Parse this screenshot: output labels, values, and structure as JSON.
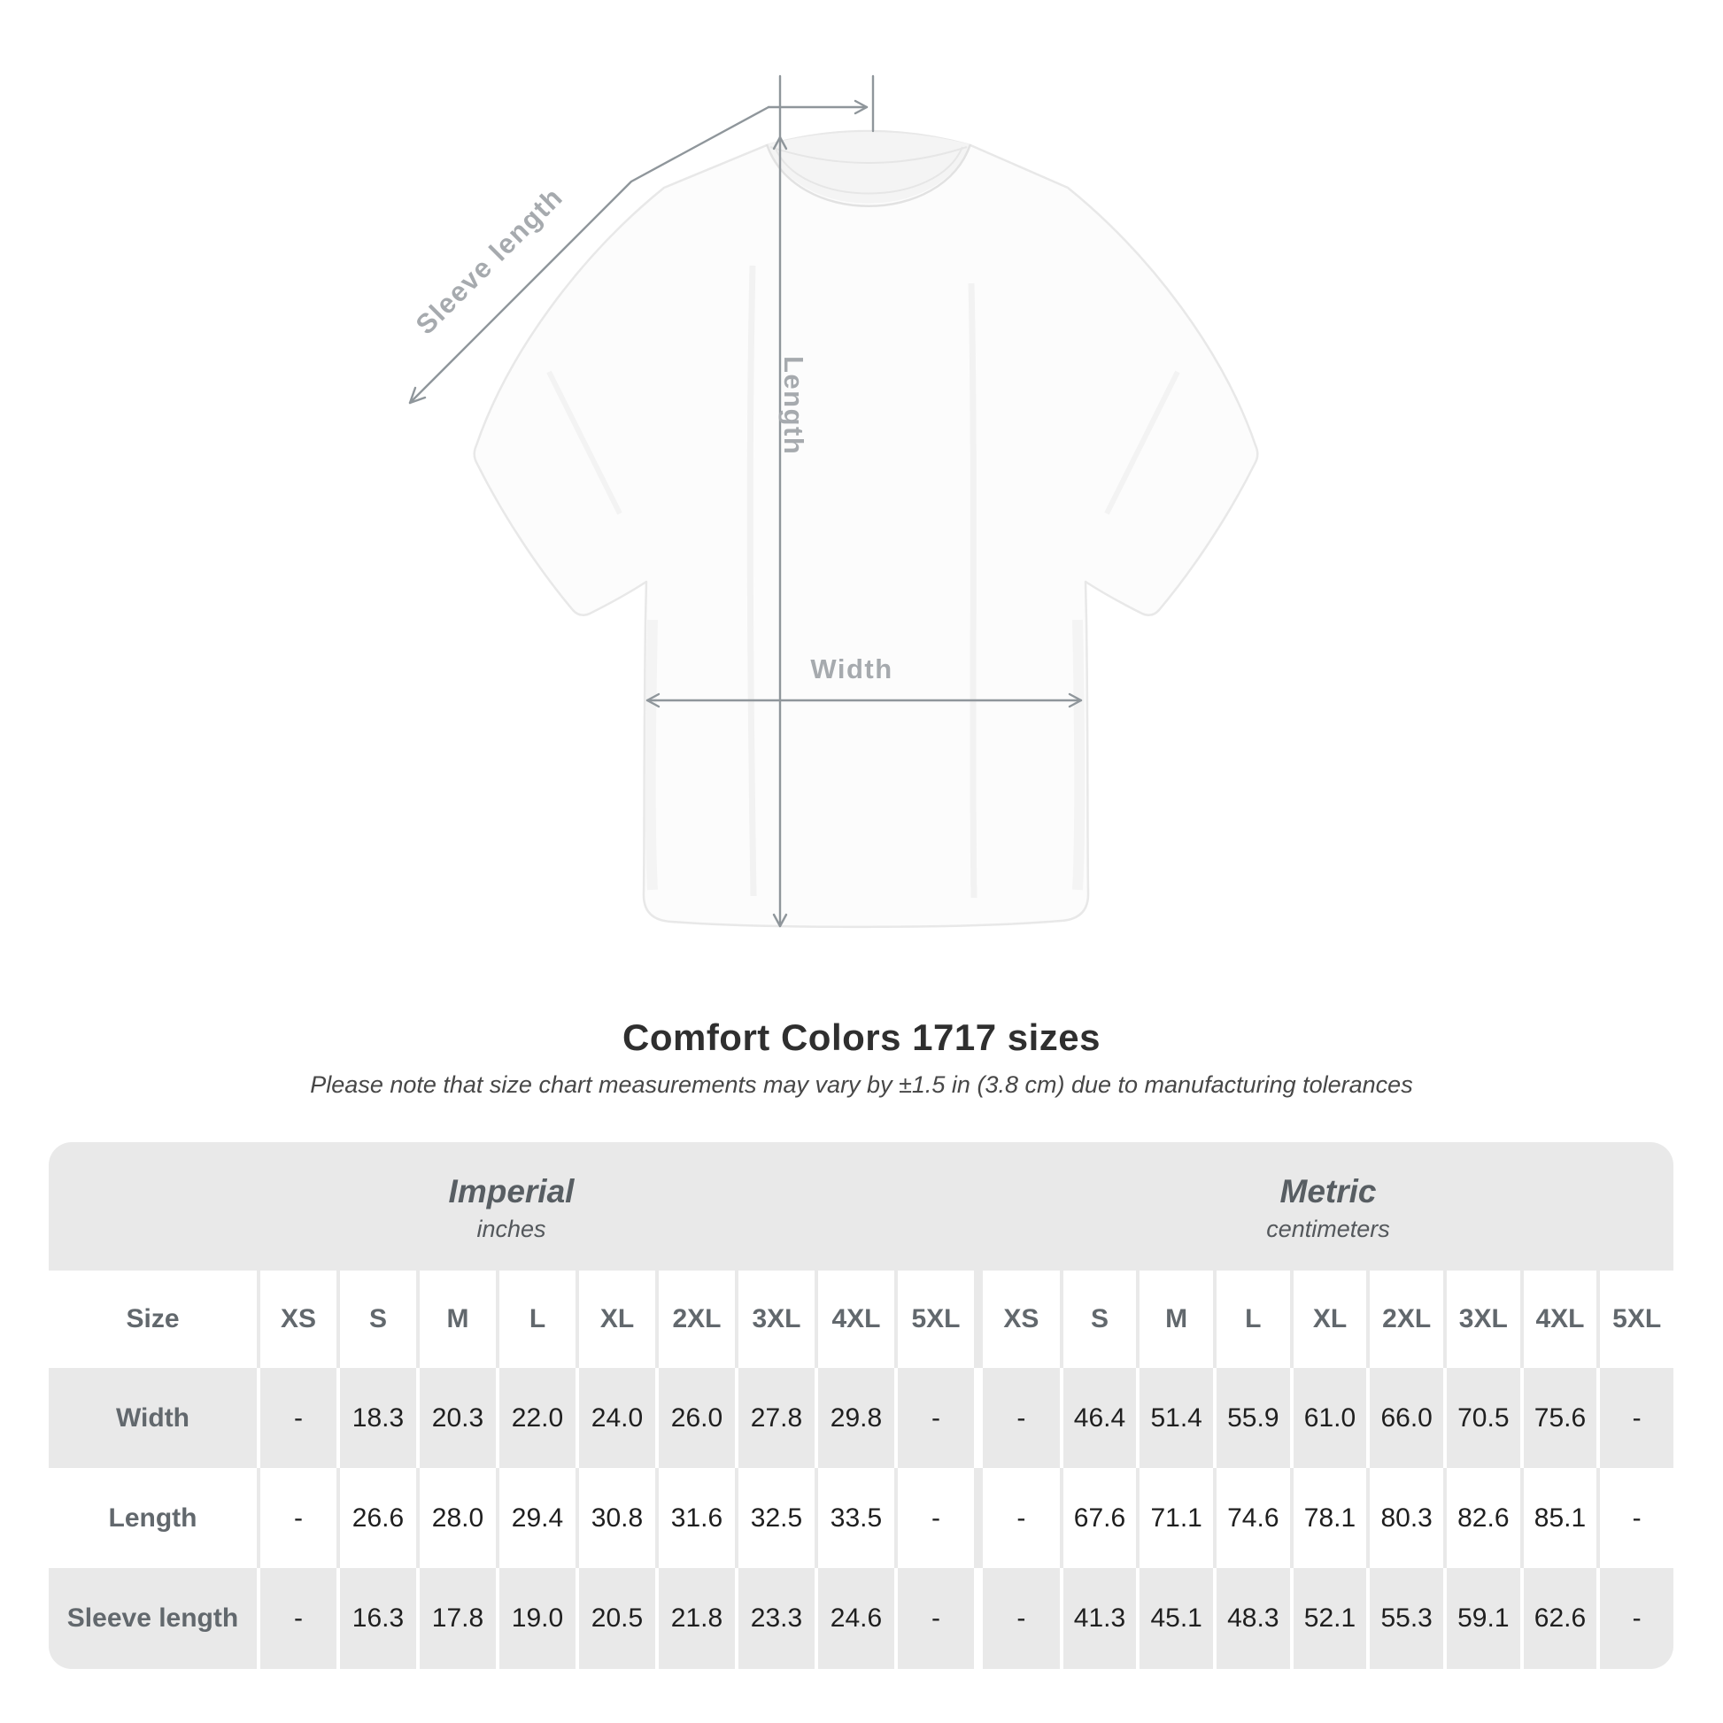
{
  "page": {
    "title": "Comfort Colors 1717 sizes",
    "subtitle": "Please note that size chart measurements may vary by ±1.5 in (3.8 cm) due to manufacturing tolerances"
  },
  "diagram": {
    "sleeve_label": "Sleeve length",
    "length_label": "Length",
    "width_label": "Width"
  },
  "size_table": {
    "units": [
      {
        "name": "Imperial",
        "unit": "inches"
      },
      {
        "name": "Metric",
        "unit": "centimeters"
      }
    ],
    "corner_label": "Size",
    "sizes": [
      "XS",
      "S",
      "M",
      "L",
      "XL",
      "2XL",
      "3XL",
      "4XL",
      "5XL"
    ],
    "rows": [
      {
        "label": "Width",
        "imperial": [
          "-",
          "18.3",
          "20.3",
          "22.0",
          "24.0",
          "26.0",
          "27.8",
          "29.8",
          "-"
        ],
        "metric": [
          "-",
          "46.4",
          "51.4",
          "55.9",
          "61.0",
          "66.0",
          "70.5",
          "75.6",
          "-"
        ]
      },
      {
        "label": "Length",
        "imperial": [
          "-",
          "26.6",
          "28.0",
          "29.4",
          "30.8",
          "31.6",
          "32.5",
          "33.5",
          "-"
        ],
        "metric": [
          "-",
          "67.6",
          "71.1",
          "74.6",
          "78.1",
          "80.3",
          "82.6",
          "85.1",
          "-"
        ]
      },
      {
        "label": "Sleeve length",
        "imperial": [
          "-",
          "16.3",
          "17.8",
          "19.0",
          "20.5",
          "21.8",
          "23.3",
          "24.6",
          "-"
        ],
        "metric": [
          "-",
          "41.3",
          "45.1",
          "48.3",
          "52.1",
          "55.3",
          "59.1",
          "62.6",
          "-"
        ]
      }
    ]
  },
  "colors": {
    "table_stripe": "#e9e9e9",
    "value_text": "#1f1f1f",
    "header_text": "#62686d",
    "measure_line": "#8f969b",
    "measure_label": "#a6aaae"
  }
}
